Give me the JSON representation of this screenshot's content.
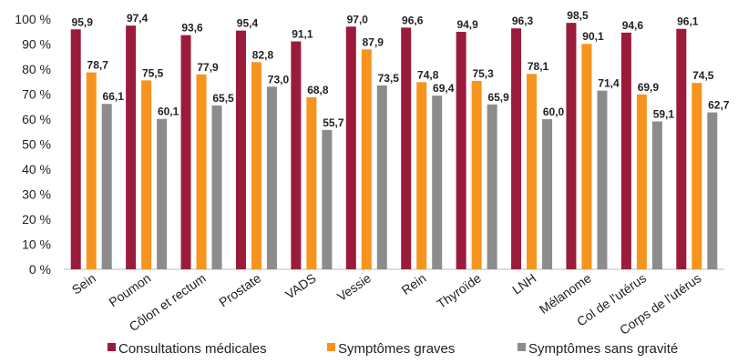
{
  "chart_data": {
    "type": "bar",
    "categories": [
      "Sein",
      "Poumon",
      "Côlon et rectum",
      "Prostate",
      "VADS",
      "Vessie",
      "Rein",
      "Thyroïde",
      "LNH",
      "Mélanome",
      "Col de l'utérus",
      "Corps de l'utérus"
    ],
    "series": [
      {
        "name": "Consultations médicales",
        "color": "#9b1b3a",
        "values": [
          95.9,
          97.4,
          93.6,
          95.4,
          91.1,
          97.0,
          96.6,
          94.9,
          96.3,
          98.5,
          94.6,
          96.1
        ]
      },
      {
        "name": "Symptômes graves",
        "color": "#f7941d",
        "values": [
          78.7,
          75.5,
          77.9,
          82.8,
          68.8,
          87.9,
          74.8,
          75.3,
          78.1,
          90.1,
          69.9,
          74.5
        ]
      },
      {
        "name": "Symptômes sans gravité",
        "color": "#8c8c8c",
        "values": [
          66.1,
          60.1,
          65.5,
          73.0,
          55.7,
          73.5,
          69.4,
          65.9,
          60.0,
          71.4,
          59.1,
          62.7
        ]
      }
    ],
    "ylim": [
      0,
      100
    ],
    "yticks": [
      "0 %",
      "10 %",
      "20 %",
      "30 %",
      "40 %",
      "50 %",
      "60 %",
      "70 %",
      "80 %",
      "90 %",
      "100 %"
    ],
    "data_labels": [
      [
        "95,9",
        "97,4",
        "93,6",
        "95,4",
        "91,1",
        "97,0",
        "96,6",
        "94,9",
        "96,3",
        "98,5",
        "94,6",
        "96,1"
      ],
      [
        "78,7",
        "75,5",
        "77,9",
        "82,8",
        "68,8",
        "87,9",
        "74,8",
        "75,3",
        "78,1",
        "90,1",
        "69,9",
        "74,5"
      ],
      [
        "66,1",
        "60,1",
        "65,5",
        "73,0",
        "55,7",
        "73,5",
        "69,4",
        "65,9",
        "60,0",
        "71,4",
        "59,1",
        "62,7"
      ]
    ],
    "legend_position": "bottom",
    "grid": false
  }
}
